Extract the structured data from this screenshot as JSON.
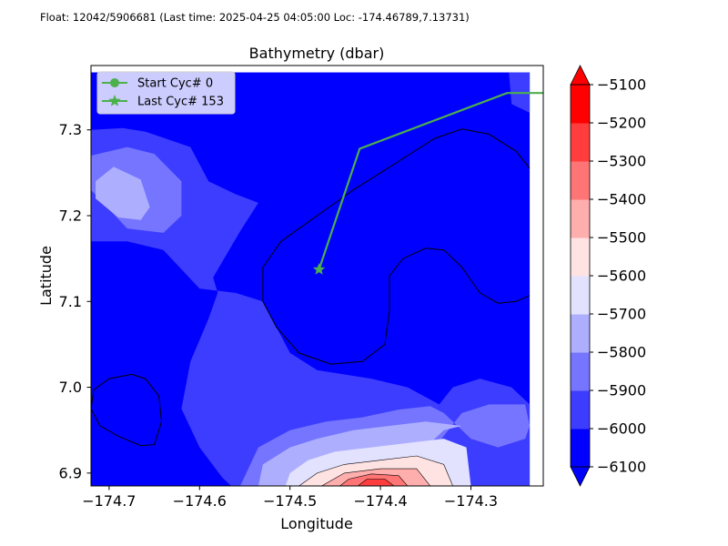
{
  "header": "Float: 12042/5906681 (Last time: 2025-04-25 04:05:00   Loc: -174.46789,7.13731)",
  "chart_data": {
    "type": "contourf",
    "title": "Bathymetry (dbar)",
    "xlabel": "Longitude",
    "ylabel": "Latitude",
    "xlim": [
      -174.72,
      -174.22
    ],
    "ylim": [
      6.885,
      7.375
    ],
    "data_extent": {
      "x": [
        -174.72,
        -174.235
      ],
      "y": [
        6.885,
        7.367
      ]
    },
    "x_ticks": [
      -174.7,
      -174.6,
      -174.5,
      -174.4,
      -174.3
    ],
    "x_tick_labels": [
      "−174.7",
      "−174.6",
      "−174.5",
      "−174.4",
      "−174.3"
    ],
    "y_ticks": [
      6.9,
      7.0,
      7.1,
      7.2,
      7.3
    ],
    "y_tick_labels": [
      "6.9",
      "7.0",
      "7.1",
      "7.2",
      "7.3"
    ],
    "colorbar": {
      "levels": [
        -6100,
        -6000,
        -5900,
        -5800,
        -5700,
        -5600,
        -5500,
        -5400,
        -5300,
        -5200,
        -5100
      ],
      "tick_labels": [
        "−6100",
        "−6000",
        "−5900",
        "−5800",
        "−5700",
        "−5600",
        "−5500",
        "−5400",
        "−5300",
        "−5200",
        "−5100"
      ],
      "colors": [
        "#0000ff",
        "#3d3dff",
        "#7575ff",
        "#aeaeff",
        "#e2e2ff",
        "#ffe2e2",
        "#ffaeae",
        "#ff7575",
        "#ff3d3d",
        "#ff0000"
      ],
      "extend": "both"
    },
    "contour_regions": [
      {
        "level": -6000,
        "pts": [
          [
            -174.72,
            7.3
          ],
          [
            -174.685,
            7.302
          ],
          [
            -174.66,
            7.298
          ],
          [
            -174.61,
            7.28
          ],
          [
            -174.59,
            7.24
          ],
          [
            -174.56,
            7.225
          ],
          [
            -174.535,
            7.215
          ],
          [
            -174.555,
            7.182
          ],
          [
            -174.57,
            7.155
          ],
          [
            -174.585,
            7.128
          ],
          [
            -174.58,
            7.11
          ],
          [
            -174.59,
            7.08
          ],
          [
            -174.61,
            7.03
          ],
          [
            -174.62,
            6.975
          ],
          [
            -174.6,
            6.93
          ],
          [
            -174.575,
            6.895
          ],
          [
            -174.565,
            6.885
          ],
          [
            -174.345,
            6.885
          ],
          [
            -174.34,
            6.93
          ],
          [
            -174.335,
            6.98
          ],
          [
            -174.37,
            7.0
          ],
          [
            -174.41,
            7.01
          ],
          [
            -174.47,
            7.02
          ],
          [
            -174.5,
            7.04
          ],
          [
            -174.515,
            7.07
          ],
          [
            -174.53,
            7.1
          ],
          [
            -174.56,
            7.11
          ],
          [
            -174.6,
            7.115
          ],
          [
            -174.64,
            7.16
          ],
          [
            -174.68,
            7.17
          ],
          [
            -174.72,
            7.17
          ]
        ]
      },
      {
        "level": -6000,
        "pts": [
          [
            -174.345,
            6.885
          ],
          [
            -174.235,
            6.885
          ],
          [
            -174.235,
            6.98
          ],
          [
            -174.255,
            7.0
          ],
          [
            -174.29,
            7.01
          ],
          [
            -174.32,
            7.0
          ],
          [
            -174.335,
            6.98
          ],
          [
            -174.34,
            6.93
          ]
        ]
      },
      {
        "level": -6000,
        "pts": [
          [
            -174.235,
            7.367
          ],
          [
            -174.258,
            7.367
          ],
          [
            -174.255,
            7.33
          ],
          [
            -174.235,
            7.32
          ]
        ]
      },
      {
        "level": -5900,
        "pts": [
          [
            -174.72,
            7.27
          ],
          [
            -174.68,
            7.28
          ],
          [
            -174.65,
            7.272
          ],
          [
            -174.62,
            7.24
          ],
          [
            -174.62,
            7.2
          ],
          [
            -174.64,
            7.18
          ],
          [
            -174.68,
            7.185
          ],
          [
            -174.72,
            7.23
          ]
        ]
      },
      {
        "level": -5900,
        "pts": [
          [
            -174.555,
            6.885
          ],
          [
            -174.355,
            6.885
          ],
          [
            -174.34,
            6.93
          ],
          [
            -174.31,
            6.97
          ],
          [
            -174.28,
            6.98
          ],
          [
            -174.24,
            6.98
          ],
          [
            -174.235,
            6.955
          ],
          [
            -174.24,
            6.94
          ],
          [
            -174.27,
            6.93
          ],
          [
            -174.3,
            6.94
          ],
          [
            -174.33,
            6.97
          ],
          [
            -174.345,
            6.978
          ],
          [
            -174.38,
            6.974
          ],
          [
            -174.42,
            6.965
          ],
          [
            -174.46,
            6.96
          ],
          [
            -174.5,
            6.95
          ],
          [
            -174.535,
            6.93
          ]
        ]
      },
      {
        "level": -5800,
        "pts": [
          [
            -174.715,
            7.24
          ],
          [
            -174.695,
            7.257
          ],
          [
            -174.665,
            7.242
          ],
          [
            -174.655,
            7.21
          ],
          [
            -174.665,
            7.195
          ],
          [
            -174.69,
            7.198
          ],
          [
            -174.715,
            7.22
          ]
        ]
      },
      {
        "level": -5800,
        "pts": [
          [
            -174.535,
            6.885
          ],
          [
            -174.38,
            6.885
          ],
          [
            -174.36,
            6.92
          ],
          [
            -174.33,
            6.95
          ],
          [
            -174.31,
            6.955
          ],
          [
            -174.35,
            6.96
          ],
          [
            -174.39,
            6.955
          ],
          [
            -174.43,
            6.95
          ],
          [
            -174.47,
            6.94
          ],
          [
            -174.5,
            6.93
          ],
          [
            -174.53,
            6.91
          ]
        ]
      },
      {
        "level": -5700,
        "pts": [
          [
            -174.505,
            6.885
          ],
          [
            -174.3,
            6.885
          ],
          [
            -174.305,
            6.93
          ],
          [
            -174.33,
            6.94
          ],
          [
            -174.37,
            6.935
          ],
          [
            -174.41,
            6.93
          ],
          [
            -174.45,
            6.925
          ],
          [
            -174.48,
            6.915
          ],
          [
            -174.5,
            6.9
          ]
        ]
      },
      {
        "level": -5600,
        "pts": [
          [
            -174.49,
            6.885
          ],
          [
            -174.32,
            6.885
          ],
          [
            -174.33,
            6.91
          ],
          [
            -174.36,
            6.92
          ],
          [
            -174.4,
            6.915
          ],
          [
            -174.44,
            6.91
          ],
          [
            -174.47,
            6.9
          ]
        ]
      },
      {
        "level": -5500,
        "pts": [
          [
            -174.465,
            6.885
          ],
          [
            -174.345,
            6.885
          ],
          [
            -174.36,
            6.905
          ],
          [
            -174.4,
            6.905
          ],
          [
            -174.44,
            6.9
          ]
        ]
      },
      {
        "level": -5400,
        "pts": [
          [
            -174.445,
            6.885
          ],
          [
            -174.37,
            6.885
          ],
          [
            -174.38,
            6.897
          ],
          [
            -174.41,
            6.899
          ],
          [
            -174.435,
            6.893
          ]
        ]
      },
      {
        "level": -5300,
        "pts": [
          [
            -174.425,
            6.885
          ],
          [
            -174.385,
            6.885
          ],
          [
            -174.395,
            6.893
          ],
          [
            -174.415,
            6.893
          ]
        ]
      }
    ],
    "isoline_6000": [
      [
        [
          -174.455,
          7.027
        ],
        [
          -174.49,
          7.04
        ],
        [
          -174.515,
          7.07
        ],
        [
          -174.53,
          7.1
        ],
        [
          -174.53,
          7.14
        ],
        [
          -174.51,
          7.17
        ],
        [
          -174.47,
          7.2
        ],
        [
          -174.43,
          7.23
        ],
        [
          -174.4,
          7.25
        ],
        [
          -174.37,
          7.27
        ],
        [
          -174.34,
          7.29
        ],
        [
          -174.31,
          7.301
        ],
        [
          -174.28,
          7.295
        ],
        [
          -174.25,
          7.275
        ],
        [
          -174.235,
          7.255
        ]
      ],
      [
        [
          -174.235,
          7.107
        ],
        [
          -174.25,
          7.1
        ],
        [
          -174.27,
          7.098
        ],
        [
          -174.29,
          7.11
        ],
        [
          -174.31,
          7.14
        ],
        [
          -174.33,
          7.16
        ],
        [
          -174.35,
          7.162
        ],
        [
          -174.375,
          7.15
        ],
        [
          -174.39,
          7.13
        ],
        [
          -174.39,
          7.09
        ],
        [
          -174.395,
          7.05
        ],
        [
          -174.42,
          7.03
        ],
        [
          -174.455,
          7.027
        ]
      ],
      [
        [
          -174.69,
          6.943
        ],
        [
          -174.71,
          6.955
        ],
        [
          -174.72,
          6.975
        ],
        [
          -174.717,
          6.997
        ],
        [
          -174.7,
          7.01
        ],
        [
          -174.675,
          7.015
        ],
        [
          -174.66,
          7.01
        ],
        [
          -174.645,
          6.99
        ],
        [
          -174.642,
          6.96
        ],
        [
          -174.65,
          6.933
        ],
        [
          -174.665,
          6.932
        ],
        [
          -174.69,
          6.943
        ]
      ]
    ],
    "track": {
      "lon": [
        -174.46789,
        -174.423,
        -174.26,
        -174.21
      ],
      "lat": [
        7.13731,
        7.278,
        7.343,
        7.343
      ],
      "color": "#4cb04c"
    },
    "legend": {
      "placement": "upper left",
      "entries": [
        {
          "label": "Start Cyc# 0",
          "marker": "circle"
        },
        {
          "label": "Last Cyc# 153",
          "marker": "star"
        }
      ]
    }
  }
}
